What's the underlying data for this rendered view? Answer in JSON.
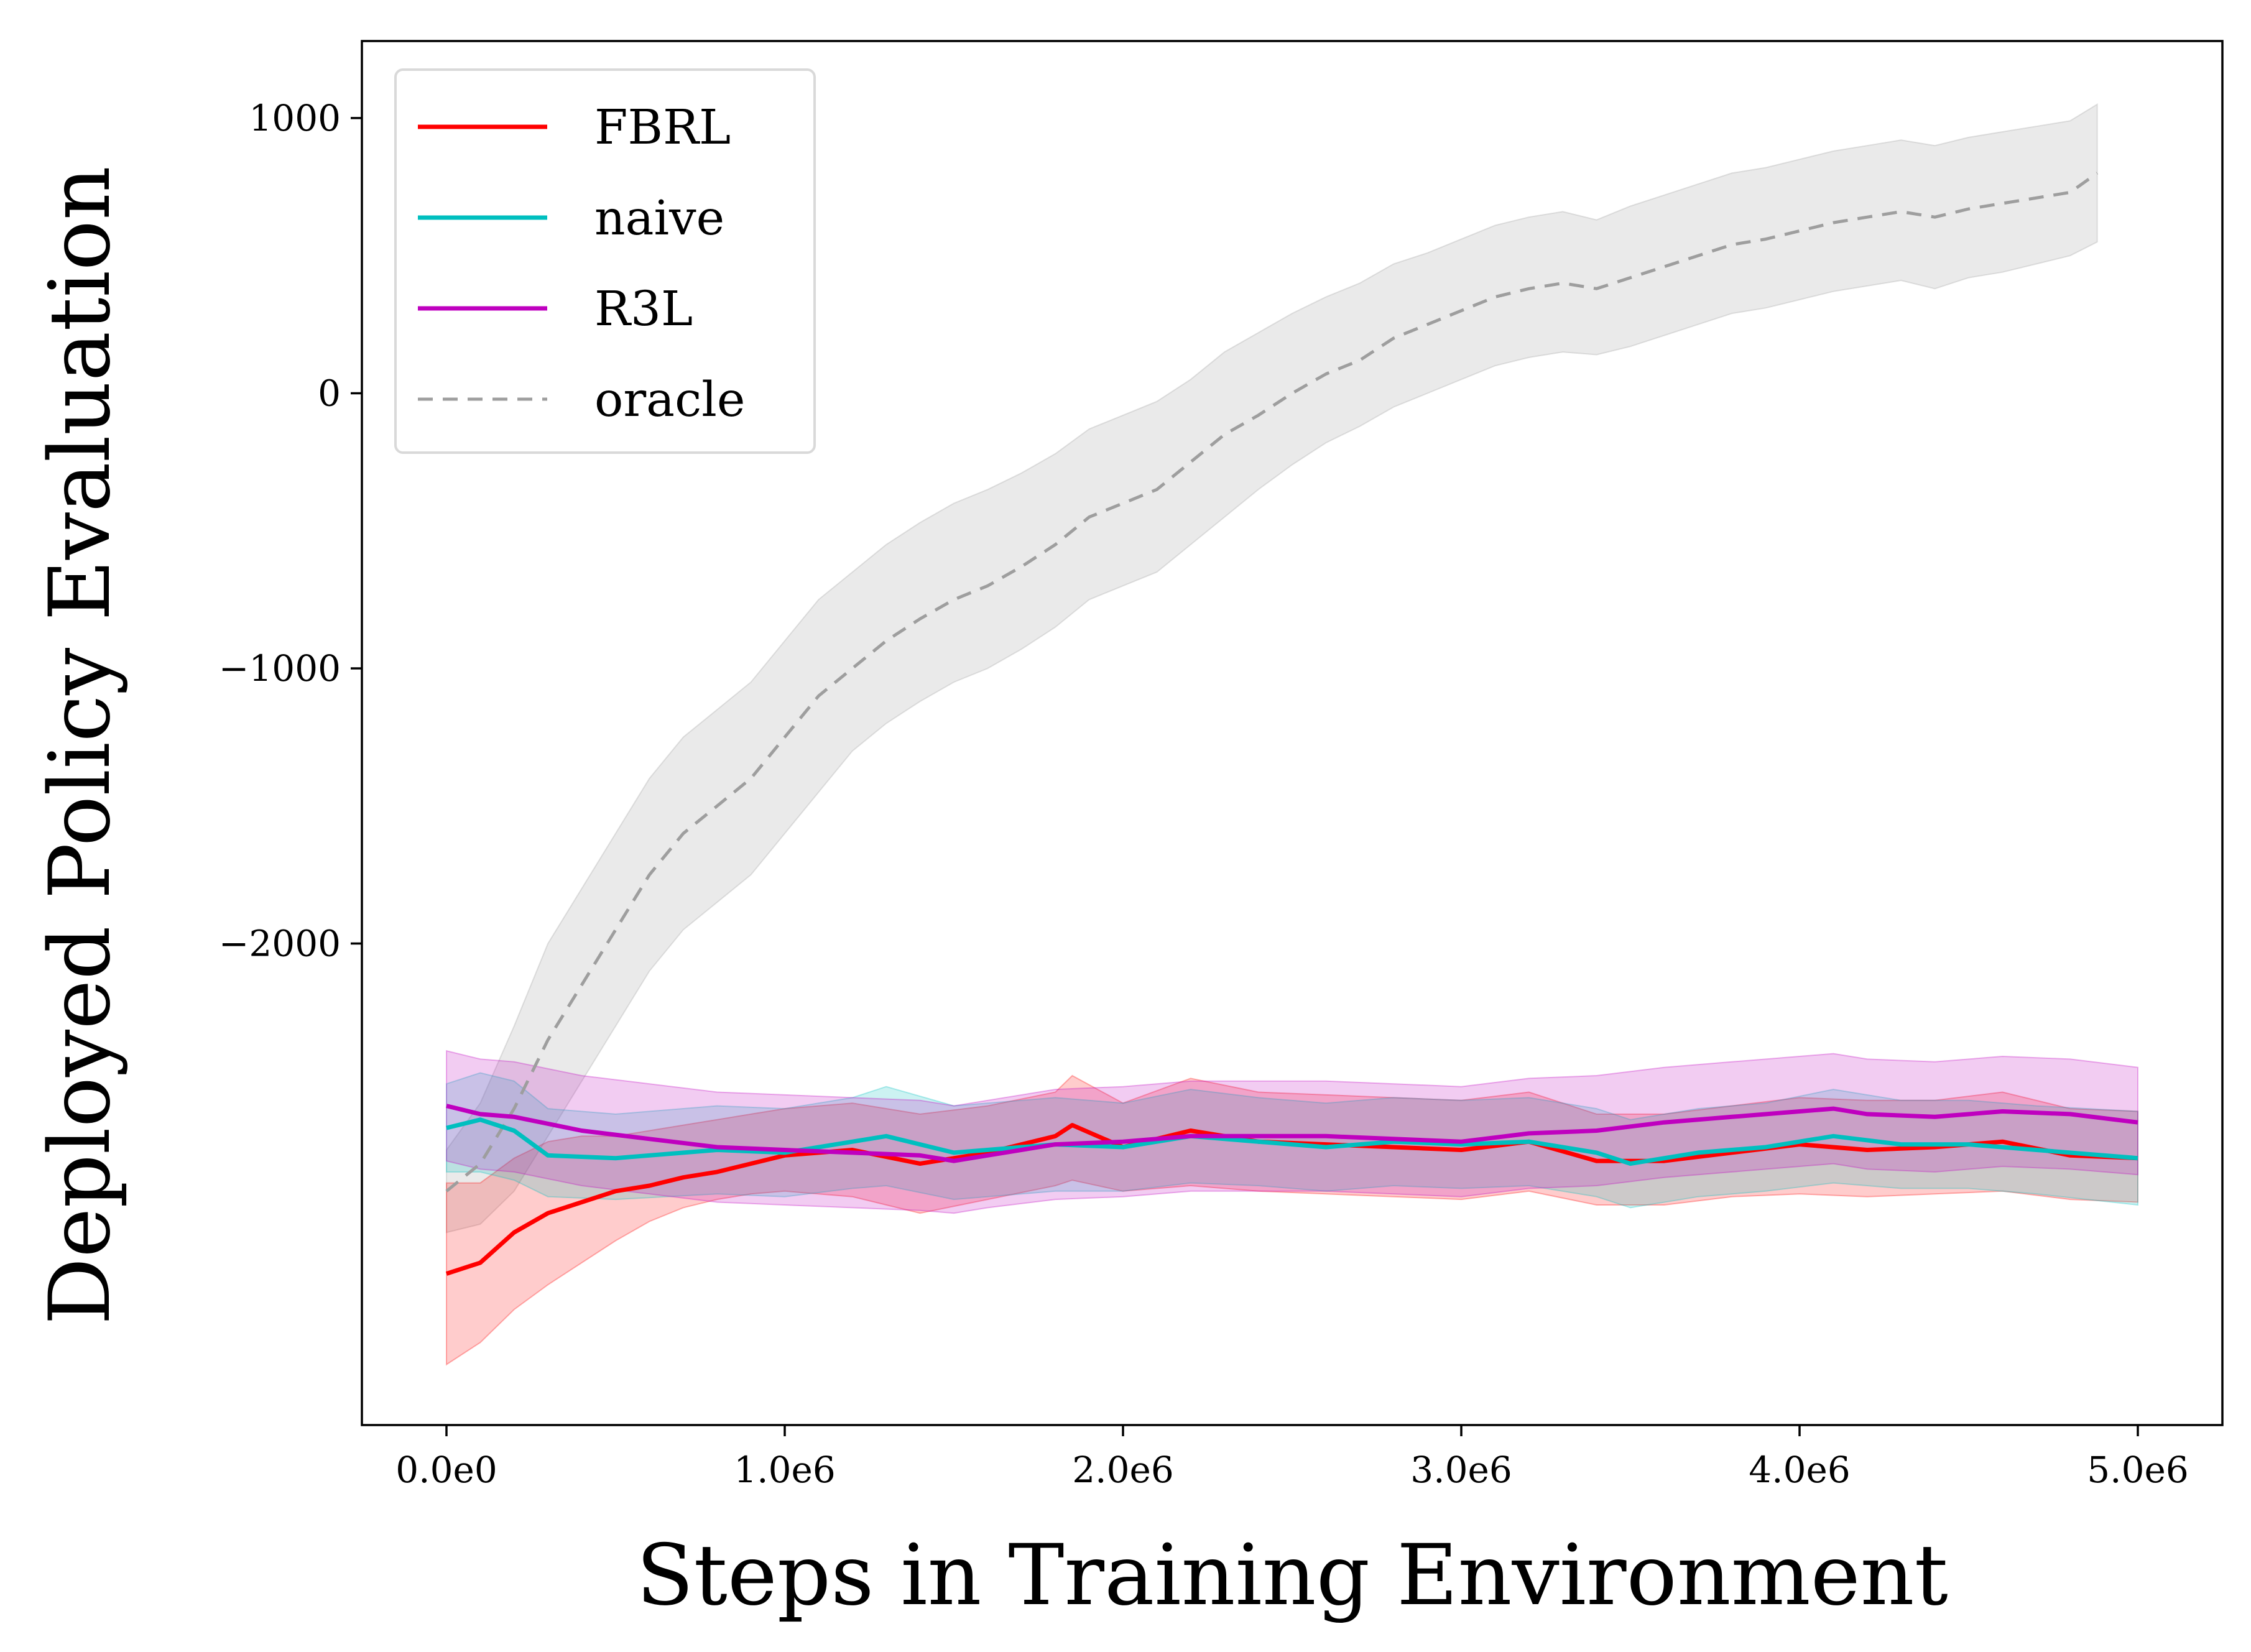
{
  "chart_data": {
    "type": "line",
    "title": "",
    "xlabel": "Steps in Training Environment",
    "ylabel": "Deployed Policy Evaluation",
    "xlim": [
      -250000,
      5250000
    ],
    "ylim": [
      -3750,
      1280
    ],
    "xticks": [
      0,
      1000000,
      2000000,
      3000000,
      4000000,
      5000000
    ],
    "xtick_labels": [
      "0.0e0",
      "1.0e6",
      "2.0e6",
      "3.0e6",
      "4.0e6",
      "5.0e6"
    ],
    "yticks": [
      -2000,
      -1000,
      0,
      1000
    ],
    "ytick_labels": [
      "−2000",
      "−1000",
      "0",
      "1000"
    ],
    "grid": false,
    "legend_position": "top-left",
    "series": [
      {
        "name": "FBRL",
        "color": "#ff0000",
        "dashed": false,
        "x": [
          0,
          100000,
          200000,
          300000,
          400000,
          500000,
          600000,
          700000,
          800000,
          900000,
          1000000,
          1200000,
          1400000,
          1600000,
          1800000,
          1850000,
          2000000,
          2200000,
          2400000,
          2600000,
          2800000,
          3000000,
          3200000,
          3400000,
          3600000,
          3800000,
          4000000,
          4200000,
          4400000,
          4600000,
          4800000,
          5000000
        ],
        "y": [
          -3200,
          -3160,
          -3050,
          -2980,
          -2940,
          -2900,
          -2880,
          -2850,
          -2830,
          -2800,
          -2770,
          -2750,
          -2800,
          -2760,
          -2700,
          -2660,
          -2740,
          -2680,
          -2720,
          -2730,
          -2740,
          -2750,
          -2720,
          -2790,
          -2790,
          -2760,
          -2730,
          -2750,
          -2740,
          -2720,
          -2770,
          -2780
        ],
        "lower": [
          -3530,
          -3450,
          -3330,
          -3240,
          -3160,
          -3080,
          -3010,
          -2960,
          -2930,
          -2910,
          -2900,
          -2920,
          -2980,
          -2930,
          -2880,
          -2860,
          -2900,
          -2880,
          -2900,
          -2910,
          -2920,
          -2930,
          -2900,
          -2950,
          -2950,
          -2920,
          -2910,
          -2920,
          -2910,
          -2900,
          -2930,
          -2940
        ],
        "upper": [
          -2870,
          -2870,
          -2780,
          -2720,
          -2700,
          -2700,
          -2680,
          -2660,
          -2640,
          -2620,
          -2600,
          -2580,
          -2620,
          -2590,
          -2540,
          -2480,
          -2580,
          -2490,
          -2540,
          -2550,
          -2560,
          -2570,
          -2540,
          -2620,
          -2620,
          -2590,
          -2560,
          -2570,
          -2570,
          -2540,
          -2600,
          -2610
        ]
      },
      {
        "name": "naive",
        "color": "#00bfbf",
        "dashed": false,
        "x": [
          0,
          100000,
          200000,
          300000,
          500000,
          800000,
          1000000,
          1200000,
          1300000,
          1500000,
          1800000,
          2000000,
          2200000,
          2400000,
          2600000,
          2800000,
          3000000,
          3200000,
          3400000,
          3500000,
          3700000,
          3900000,
          4100000,
          4300000,
          4500000,
          4700000,
          5000000
        ],
        "y": [
          -2670,
          -2640,
          -2680,
          -2770,
          -2780,
          -2750,
          -2760,
          -2720,
          -2700,
          -2760,
          -2730,
          -2740,
          -2700,
          -2720,
          -2740,
          -2720,
          -2730,
          -2720,
          -2760,
          -2800,
          -2760,
          -2740,
          -2700,
          -2730,
          -2730,
          -2750,
          -2780
        ],
        "lower": [
          -2830,
          -2830,
          -2860,
          -2920,
          -2930,
          -2910,
          -2920,
          -2890,
          -2880,
          -2930,
          -2900,
          -2900,
          -2870,
          -2880,
          -2900,
          -2880,
          -2890,
          -2880,
          -2920,
          -2960,
          -2920,
          -2900,
          -2870,
          -2890,
          -2890,
          -2910,
          -2950
        ],
        "upper": [
          -2510,
          -2470,
          -2500,
          -2600,
          -2620,
          -2590,
          -2600,
          -2560,
          -2520,
          -2590,
          -2560,
          -2580,
          -2530,
          -2560,
          -2580,
          -2560,
          -2570,
          -2560,
          -2600,
          -2640,
          -2600,
          -2580,
          -2530,
          -2570,
          -2570,
          -2590,
          -2610
        ]
      },
      {
        "name": "R3L",
        "color": "#bf00bf",
        "dashed": false,
        "x": [
          0,
          100000,
          200000,
          400000,
          600000,
          800000,
          1000000,
          1200000,
          1400000,
          1500000,
          1600000,
          1800000,
          2000000,
          2200000,
          2400000,
          2600000,
          2800000,
          3000000,
          3200000,
          3400000,
          3600000,
          3800000,
          4000000,
          4100000,
          4200000,
          4400000,
          4600000,
          4800000,
          5000000
        ],
        "y": [
          -2590,
          -2620,
          -2630,
          -2680,
          -2710,
          -2740,
          -2750,
          -2760,
          -2770,
          -2790,
          -2770,
          -2730,
          -2720,
          -2700,
          -2700,
          -2700,
          -2710,
          -2720,
          -2690,
          -2680,
          -2650,
          -2630,
          -2610,
          -2600,
          -2620,
          -2630,
          -2610,
          -2620,
          -2650
        ],
        "lower": [
          -2790,
          -2820,
          -2830,
          -2880,
          -2910,
          -2940,
          -2950,
          -2960,
          -2970,
          -2980,
          -2960,
          -2930,
          -2920,
          -2900,
          -2900,
          -2900,
          -2910,
          -2920,
          -2890,
          -2880,
          -2850,
          -2830,
          -2810,
          -2800,
          -2820,
          -2830,
          -2810,
          -2820,
          -2840
        ],
        "upper": [
          -2390,
          -2420,
          -2430,
          -2480,
          -2510,
          -2540,
          -2550,
          -2560,
          -2570,
          -2590,
          -2570,
          -2530,
          -2520,
          -2500,
          -2500,
          -2500,
          -2510,
          -2520,
          -2490,
          -2480,
          -2450,
          -2430,
          -2410,
          -2400,
          -2420,
          -2430,
          -2410,
          -2420,
          -2450
        ]
      },
      {
        "name": "oracle",
        "color": "#9e9e9e",
        "dashed": true,
        "x": [
          0,
          100000,
          200000,
          300000,
          400000,
          500000,
          600000,
          700000,
          800000,
          900000,
          1000000,
          1100000,
          1200000,
          1300000,
          1400000,
          1500000,
          1600000,
          1700000,
          1800000,
          1900000,
          2000000,
          2100000,
          2200000,
          2300000,
          2400000,
          2500000,
          2600000,
          2700000,
          2800000,
          2900000,
          3000000,
          3100000,
          3200000,
          3300000,
          3400000,
          3500000,
          3600000,
          3700000,
          3800000,
          3900000,
          4000000,
          4100000,
          4200000,
          4300000,
          4400000,
          4500000,
          4600000,
          4700000,
          4800000,
          4880000
        ],
        "y": [
          -2900,
          -2800,
          -2600,
          -2350,
          -2150,
          -1950,
          -1750,
          -1600,
          -1500,
          -1400,
          -1250,
          -1100,
          -1000,
          -900,
          -820,
          -750,
          -700,
          -630,
          -550,
          -450,
          -400,
          -350,
          -250,
          -150,
          -80,
          0,
          70,
          120,
          200,
          250,
          300,
          350,
          380,
          400,
          380,
          420,
          460,
          500,
          540,
          560,
          590,
          620,
          640,
          660,
          640,
          670,
          690,
          710,
          730,
          800
        ],
        "lower": [
          -3050,
          -3020,
          -2900,
          -2700,
          -2500,
          -2300,
          -2100,
          -1950,
          -1850,
          -1750,
          -1600,
          -1450,
          -1300,
          -1200,
          -1120,
          -1050,
          -1000,
          -930,
          -850,
          -750,
          -700,
          -650,
          -550,
          -450,
          -350,
          -260,
          -180,
          -120,
          -50,
          0,
          50,
          100,
          130,
          150,
          140,
          170,
          210,
          250,
          290,
          310,
          340,
          370,
          390,
          410,
          380,
          420,
          440,
          470,
          500,
          550
        ],
        "upper": [
          -2750,
          -2580,
          -2300,
          -2000,
          -1800,
          -1600,
          -1400,
          -1250,
          -1150,
          -1050,
          -900,
          -750,
          -650,
          -550,
          -470,
          -400,
          -350,
          -290,
          -220,
          -130,
          -80,
          -30,
          50,
          150,
          220,
          290,
          350,
          400,
          470,
          510,
          560,
          610,
          640,
          660,
          630,
          680,
          720,
          760,
          800,
          820,
          850,
          880,
          900,
          920,
          900,
          930,
          950,
          970,
          990,
          1050
        ]
      }
    ]
  }
}
